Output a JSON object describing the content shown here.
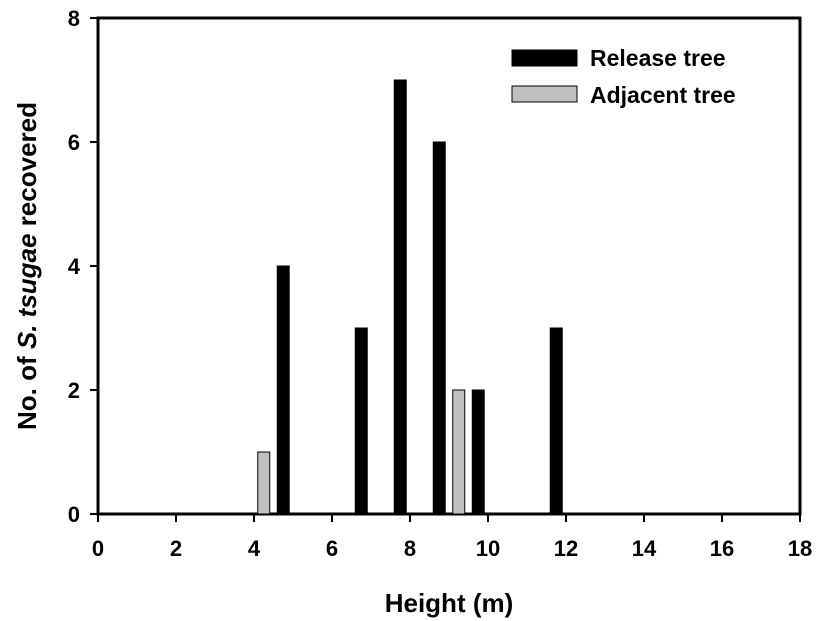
{
  "chart_data": {
    "type": "bar",
    "xlabel": "Height (m)",
    "ylabel_parts": [
      "No. of ",
      "S. tsugae",
      " recovered"
    ],
    "xlim": [
      0,
      18
    ],
    "ylim": [
      0,
      8
    ],
    "x_ticks": [
      "0",
      "2",
      "4",
      "6",
      "8",
      "10",
      "12",
      "14",
      "16",
      "18"
    ],
    "y_ticks": [
      "0",
      "2",
      "4",
      "6",
      "8"
    ],
    "grid": false,
    "legend_position": "top-right",
    "series": [
      {
        "name": "Release tree",
        "color": "#000000",
        "points": [
          {
            "x": 4.75,
            "y": 4
          },
          {
            "x": 6.75,
            "y": 3
          },
          {
            "x": 7.75,
            "y": 7
          },
          {
            "x": 8.75,
            "y": 6
          },
          {
            "x": 9.75,
            "y": 2
          },
          {
            "x": 11.75,
            "y": 3
          }
        ]
      },
      {
        "name": "Adjacent tree",
        "color": "#c0c0c0",
        "points": [
          {
            "x": 4.25,
            "y": 1
          },
          {
            "x": 9.25,
            "y": 2
          }
        ]
      }
    ]
  }
}
